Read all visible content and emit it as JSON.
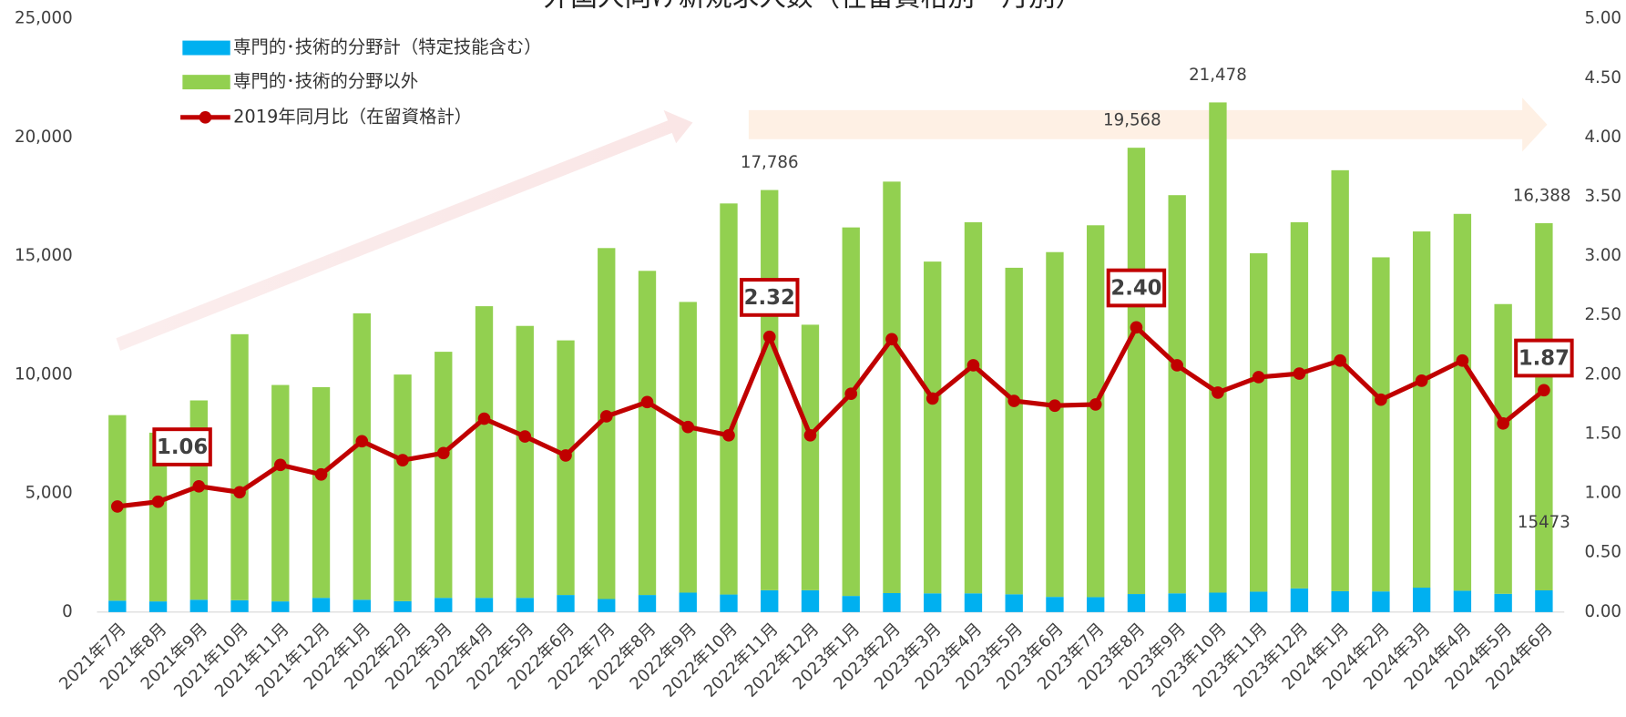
{
  "chart_data": {
    "type": "bar-line",
    "title": "外国人向け新規求人数（在留資格別・月別）",
    "categories": [
      "2021年7月",
      "2021年8月",
      "2021年9月",
      "2021年10月",
      "2021年11月",
      "2021年12月",
      "2022年1月",
      "2022年2月",
      "2022年3月",
      "2022年4月",
      "2022年5月",
      "2022年6月",
      "2022年7月",
      "2022年8月",
      "2022年9月",
      "2022年10月",
      "2022年11月",
      "2022年12月",
      "2023年1月",
      "2023年2月",
      "2023年3月",
      "2023年4月",
      "2023年5月",
      "2023年6月",
      "2023年7月",
      "2023年8月",
      "2023年9月",
      "2023年10月",
      "2023年11月",
      "2023年12月",
      "2024年1月",
      "2024年2月",
      "2024年3月",
      "2024年4月",
      "2024年5月",
      "2024年6月"
    ],
    "series": [
      {
        "name": "専門的･技術的分野計（特定技能含む）",
        "color": "#00b0f0",
        "kind": "bar",
        "values": [
          480,
          450,
          520,
          500,
          450,
          600,
          520,
          460,
          600,
          600,
          600,
          720,
          550,
          720,
          820,
          740,
          920,
          920,
          680,
          800,
          790,
          790,
          750,
          640,
          630,
          760,
          790,
          820,
          860,
          1000,
          880,
          870,
          1030,
          900,
          770,
          915
        ]
      },
      {
        "name": "専門的･技術的分野以外",
        "color": "#92d050",
        "kind": "bar",
        "values": [
          7820,
          7110,
          8400,
          11210,
          9120,
          8880,
          12070,
          9550,
          10370,
          12290,
          11460,
          10730,
          14790,
          13660,
          12250,
          16480,
          16866,
          11190,
          15530,
          17340,
          13980,
          15640,
          13760,
          14530,
          15670,
          18808,
          16780,
          20658,
          14260,
          15430,
          17740,
          14080,
          15010,
          15880,
          12210,
          15473
        ],
        "value_labels": [
          null,
          null,
          null,
          null,
          null,
          null,
          null,
          null,
          null,
          null,
          null,
          null,
          null,
          null,
          null,
          null,
          null,
          null,
          null,
          null,
          null,
          null,
          null,
          null,
          null,
          null,
          null,
          null,
          null,
          null,
          null,
          null,
          null,
          null,
          null,
          "15473"
        ]
      },
      {
        "name": "2019年同月比（在留資格計）",
        "color": "#c00000",
        "kind": "line",
        "axis": "y2",
        "values": [
          0.89,
          0.93,
          1.06,
          1.01,
          1.24,
          1.16,
          1.44,
          1.28,
          1.34,
          1.63,
          1.48,
          1.32,
          1.65,
          1.77,
          1.56,
          1.49,
          2.32,
          1.49,
          1.84,
          2.3,
          1.8,
          2.08,
          1.78,
          1.74,
          1.75,
          2.4,
          2.08,
          1.85,
          1.98,
          2.01,
          2.12,
          1.79,
          1.95,
          2.12,
          1.59,
          1.87
        ],
        "value_labels": [
          null,
          null,
          "1.06",
          null,
          null,
          null,
          null,
          null,
          null,
          null,
          null,
          null,
          null,
          null,
          null,
          null,
          "2.32",
          null,
          null,
          null,
          null,
          null,
          null,
          null,
          null,
          "2.40",
          null,
          null,
          null,
          null,
          null,
          null,
          null,
          null,
          null,
          "1.87"
        ]
      }
    ],
    "total_labels": [
      null,
      null,
      null,
      null,
      null,
      null,
      null,
      null,
      null,
      null,
      null,
      null,
      null,
      null,
      null,
      null,
      "17,786",
      null,
      null,
      null,
      null,
      null,
      null,
      null,
      null,
      "19,568",
      null,
      "21,478",
      null,
      null,
      null,
      null,
      null,
      null,
      null,
      "16,388"
    ],
    "ylim": [
      0,
      25000
    ],
    "yticks": [
      0,
      {
        "value": 5000,
        "label": "5,000"
      },
      {
        "value": 10000,
        "label": "10,000"
      },
      {
        "value": 15000,
        "label": "15,000"
      },
      {
        "value": 20000,
        "label": "20,000"
      },
      {
        "value": 25000,
        "label": "25,000"
      }
    ],
    "y2lim": [
      0,
      5
    ],
    "y2ticks": [
      {
        "value": 0,
        "label": "0.00"
      },
      {
        "value": 0.5,
        "label": "0.50"
      },
      {
        "value": 1,
        "label": "1.00"
      },
      {
        "value": 1.5,
        "label": "1.50"
      },
      {
        "value": 2,
        "label": "2.00"
      },
      {
        "value": 2.5,
        "label": "2.50"
      },
      {
        "value": 3,
        "label": "3.00"
      },
      {
        "value": 3.5,
        "label": "3.50"
      },
      {
        "value": 4,
        "label": "4.00"
      },
      {
        "value": 4.5,
        "label": "4.50"
      },
      {
        "value": 5,
        "label": "5.00"
      }
    ],
    "grid": false,
    "legend": "top-left"
  }
}
